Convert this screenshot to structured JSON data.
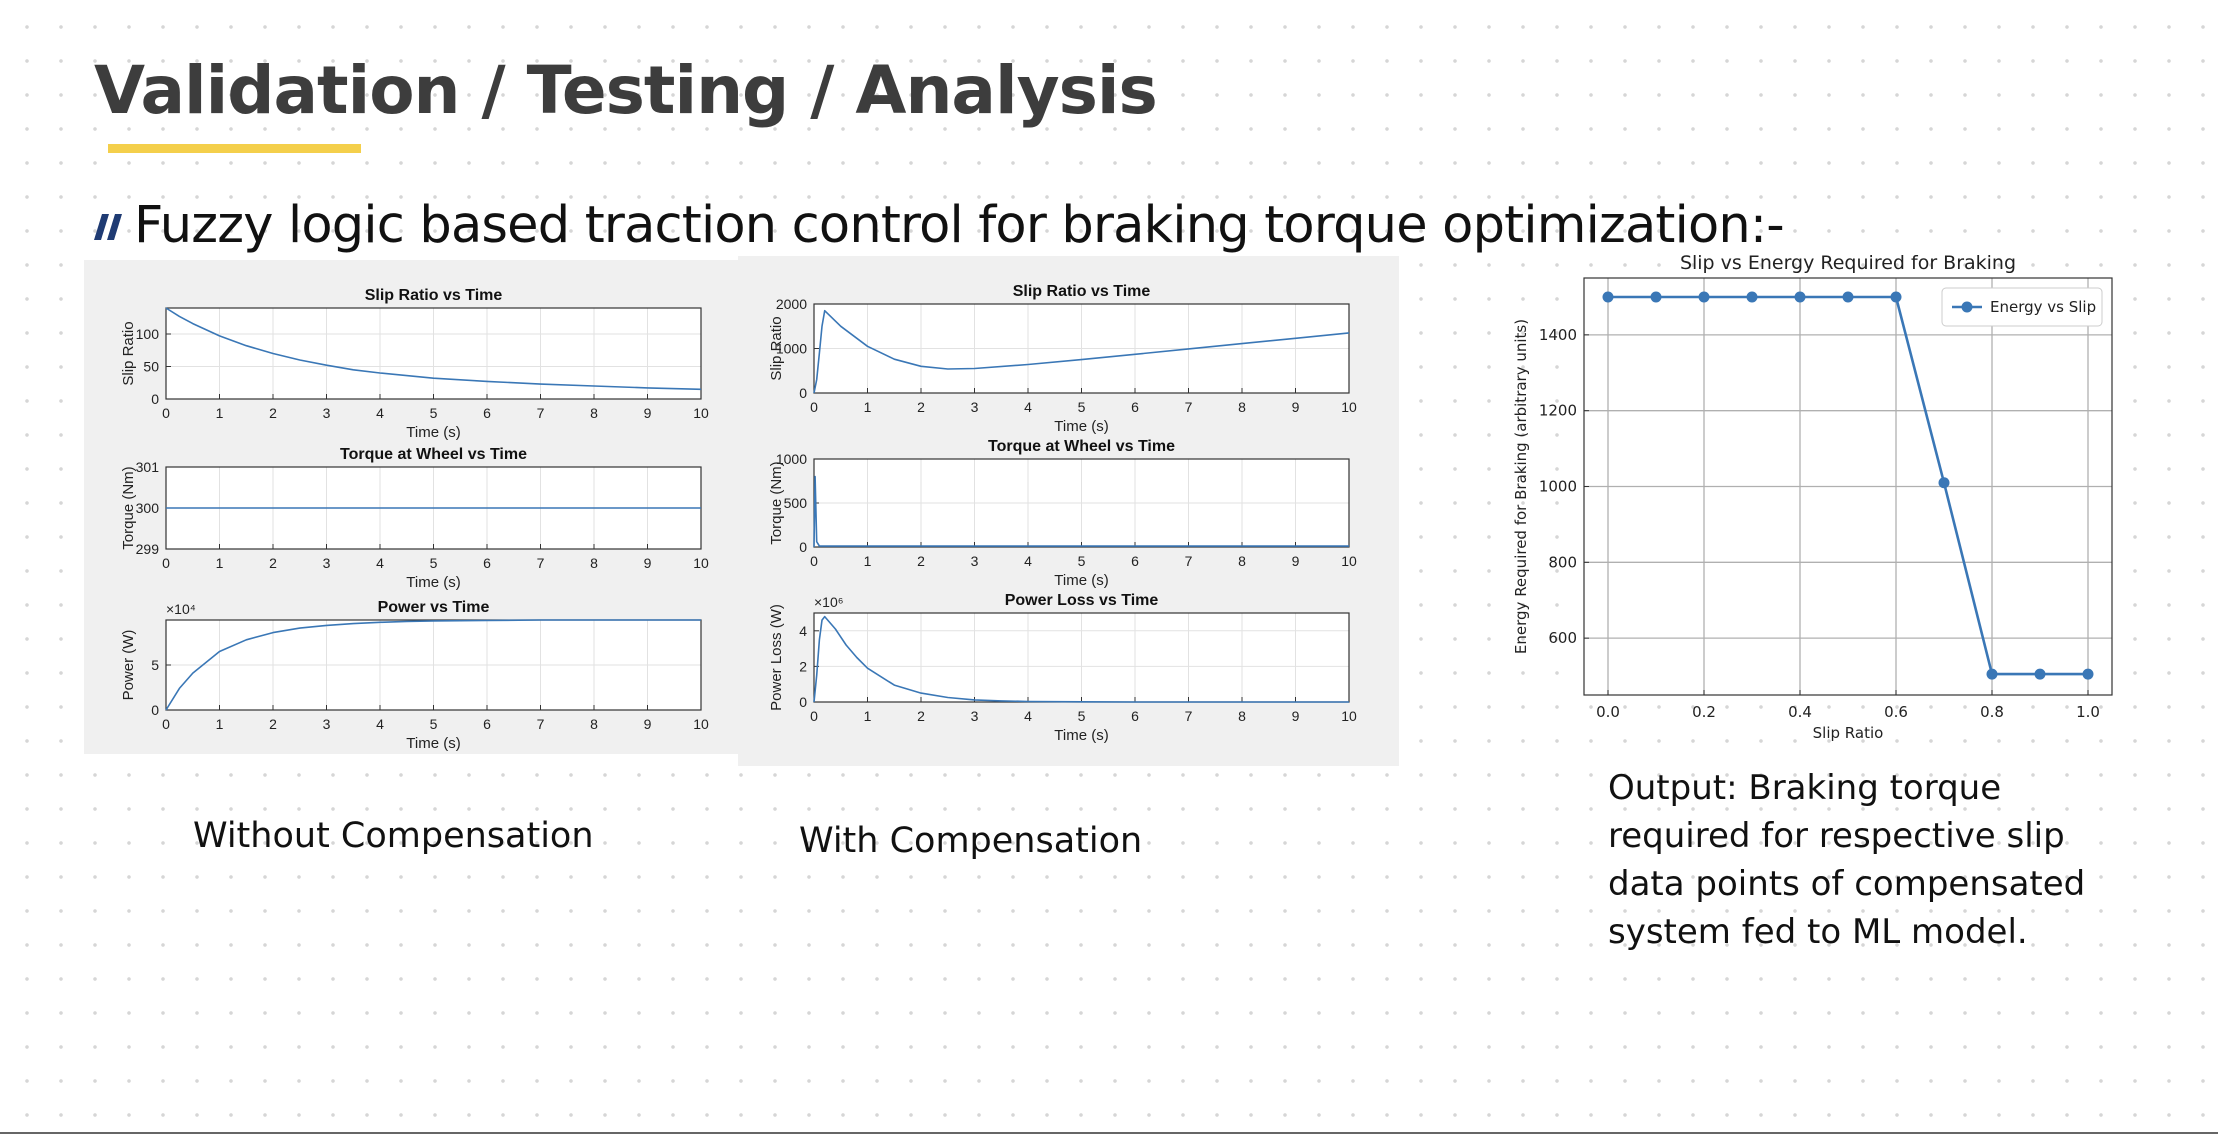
{
  "slide": {
    "title": "Validation / Testing / Analysis",
    "bullet": "Fuzzy logic based traction control for braking torque optimization:-",
    "caption_without": "Without Compensation",
    "caption_with": "With Compensation",
    "output_text": "Output: Braking torque required for respective slip data points of compensated system fed to ML model.",
    "accent_color": "#f4cf4b",
    "bullet_color": "#1f3b73"
  },
  "chart_data": [
    {
      "id": "wo_slip",
      "type": "line",
      "title": "Slip Ratio vs Time",
      "xlabel": "Time (s)",
      "ylabel": "Slip Ratio",
      "xlim": [
        0,
        10
      ],
      "ylim": [
        0,
        140
      ],
      "xticks": [
        0,
        1,
        2,
        3,
        4,
        5,
        6,
        7,
        8,
        9,
        10
      ],
      "yticks": [
        0,
        50,
        100
      ],
      "grid": true,
      "series": [
        {
          "x": [
            0,
            0.25,
            0.5,
            1,
            1.5,
            2,
            2.5,
            3,
            3.5,
            4,
            5,
            6,
            7,
            8,
            9,
            10
          ],
          "y": [
            140,
            127,
            116,
            97,
            82,
            70,
            60,
            52,
            45,
            40,
            32,
            27,
            23,
            20,
            17,
            15
          ]
        }
      ]
    },
    {
      "id": "wo_torque",
      "type": "line",
      "title": "Torque at Wheel vs Time",
      "xlabel": "Time (s)",
      "ylabel": "Torque (Nm)",
      "xlim": [
        0,
        10
      ],
      "ylim": [
        299,
        301
      ],
      "xticks": [
        0,
        1,
        2,
        3,
        4,
        5,
        6,
        7,
        8,
        9,
        10
      ],
      "yticks": [
        299,
        300,
        301
      ],
      "grid": true,
      "series": [
        {
          "x": [
            0,
            10
          ],
          "y": [
            300,
            300
          ]
        }
      ]
    },
    {
      "id": "wo_power",
      "type": "line",
      "title": "Power vs Time",
      "xlabel": "Time (s)",
      "ylabel": "Power (W)",
      "xlim": [
        0,
        10
      ],
      "ylim": [
        0,
        10
      ],
      "ymult": "×10⁴",
      "xticks": [
        0,
        1,
        2,
        3,
        4,
        5,
        6,
        7,
        8,
        9,
        10
      ],
      "yticks": [
        0,
        5
      ],
      "grid": true,
      "series": [
        {
          "x": [
            0,
            0.25,
            0.5,
            1,
            1.5,
            2,
            2.5,
            3,
            3.5,
            4,
            4.5,
            5,
            6,
            7,
            8,
            9,
            10
          ],
          "y": [
            0,
            2.4,
            4.1,
            6.5,
            7.8,
            8.6,
            9.1,
            9.4,
            9.6,
            9.75,
            9.85,
            9.9,
            9.95,
            10,
            10,
            10,
            10
          ]
        }
      ]
    },
    {
      "id": "w_slip",
      "type": "line",
      "title": "Slip Ratio vs Time",
      "xlabel": "Time (s)",
      "ylabel": "Slip Ratio",
      "xlim": [
        0,
        10
      ],
      "ylim": [
        0,
        2000
      ],
      "xticks": [
        0,
        1,
        2,
        3,
        4,
        5,
        6,
        7,
        8,
        9,
        10
      ],
      "yticks": [
        0,
        1000,
        2000
      ],
      "grid": true,
      "series": [
        {
          "x": [
            0,
            0.05,
            0.1,
            0.15,
            0.2,
            0.5,
            1,
            1.5,
            2,
            2.5,
            3,
            4,
            5,
            6,
            7,
            8,
            9,
            10
          ],
          "y": [
            0,
            300,
            900,
            1500,
            1850,
            1500,
            1050,
            760,
            600,
            540,
            550,
            640,
            750,
            870,
            990,
            1110,
            1230,
            1350
          ]
        }
      ]
    },
    {
      "id": "w_torque",
      "type": "line",
      "title": "Torque at Wheel vs Time",
      "xlabel": "Time (s)",
      "ylabel": "Torque (Nm)",
      "xlim": [
        0,
        10
      ],
      "ylim": [
        0,
        1000
      ],
      "xticks": [
        0,
        1,
        2,
        3,
        4,
        5,
        6,
        7,
        8,
        9,
        10
      ],
      "yticks": [
        0,
        500,
        1000
      ],
      "grid": true,
      "series": [
        {
          "x": [
            0,
            0.02,
            0.05,
            0.1,
            10
          ],
          "y": [
            0,
            800,
            60,
            10,
            10
          ]
        }
      ]
    },
    {
      "id": "w_power",
      "type": "line",
      "title": "Power Loss vs Time",
      "xlabel": "Time (s)",
      "ylabel": "Power Loss (W)",
      "xlim": [
        0,
        10
      ],
      "ylim": [
        0,
        5
      ],
      "ymult": "×10⁶",
      "xticks": [
        0,
        1,
        2,
        3,
        4,
        5,
        6,
        7,
        8,
        9,
        10
      ],
      "yticks": [
        0,
        2,
        4
      ],
      "grid": true,
      "series": [
        {
          "x": [
            0,
            0.05,
            0.1,
            0.15,
            0.2,
            0.4,
            0.6,
            0.8,
            1,
            1.5,
            2,
            2.5,
            3,
            3.5,
            4,
            5,
            6,
            7,
            8,
            9,
            10
          ],
          "y": [
            0,
            1.5,
            3.5,
            4.6,
            4.8,
            4.1,
            3.2,
            2.5,
            1.9,
            0.95,
            0.5,
            0.25,
            0.12,
            0.06,
            0.03,
            0.01,
            0,
            0,
            0,
            0,
            0
          ]
        }
      ]
    },
    {
      "id": "energy",
      "type": "line",
      "title": "Slip vs Energy Required for Braking",
      "xlabel": "Slip Ratio",
      "ylabel": "Energy Required for Braking (arbitrary units)",
      "xlim": [
        -0.05,
        1.05
      ],
      "ylim": [
        450,
        1550
      ],
      "xticks": [
        0.0,
        0.2,
        0.4,
        0.6,
        0.8,
        1.0
      ],
      "yticks": [
        600,
        800,
        1000,
        1200,
        1400
      ],
      "grid": true,
      "legend": "top-right",
      "series": [
        {
          "name": "Energy vs Slip",
          "x": [
            0.0,
            0.1,
            0.2,
            0.3,
            0.4,
            0.5,
            0.6,
            0.7,
            0.8,
            0.9,
            1.0
          ],
          "y": [
            1500,
            1500,
            1500,
            1500,
            1500,
            1500,
            1500,
            1010,
            505,
            505,
            505
          ]
        }
      ]
    }
  ]
}
